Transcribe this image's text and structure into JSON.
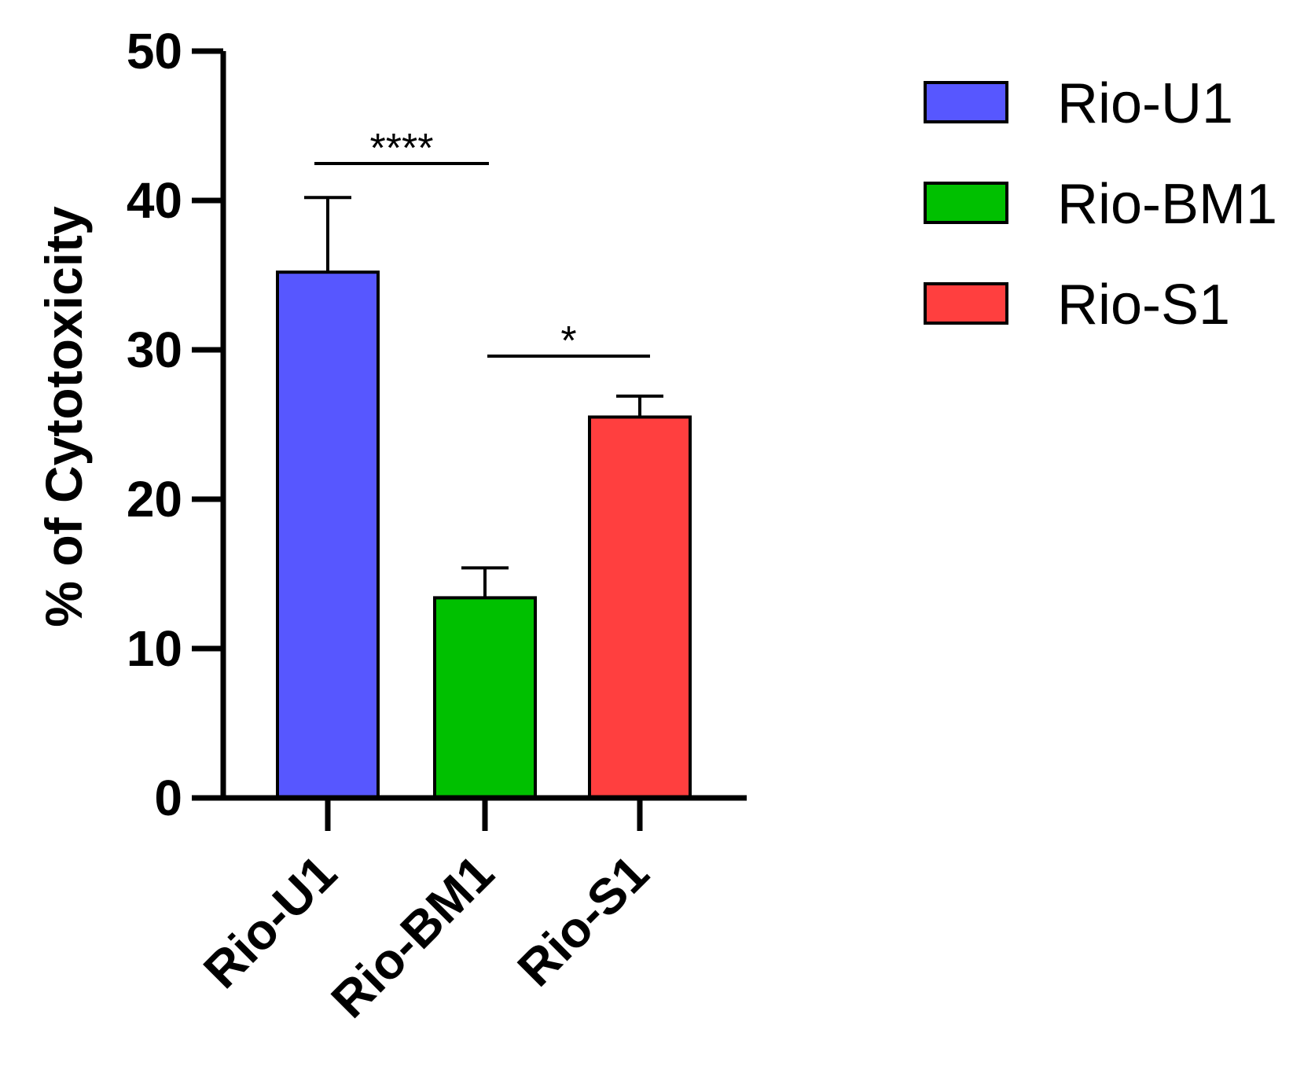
{
  "chart_data": {
    "type": "bar",
    "title": "",
    "xlabel": "",
    "ylabel": "% of Cytotoxicity",
    "ylim": [
      0,
      50
    ],
    "yticks": [
      0,
      10,
      20,
      30,
      40,
      50
    ],
    "categories": [
      "Rio-U1",
      "Rio-BM1",
      "Rio-S1"
    ],
    "values": [
      35.2,
      13.4,
      25.5
    ],
    "errors": [
      5.0,
      2.0,
      1.4
    ],
    "colors": [
      "#5757FF",
      "#00C000",
      "#FF3F3F"
    ],
    "legend": {
      "placement": "top-right",
      "entries": [
        "Rio-U1",
        "Rio-BM1",
        "Rio-S1"
      ]
    },
    "annotations": [
      {
        "from": 0,
        "to": 1,
        "label": "****"
      },
      {
        "from": 1,
        "to": 2,
        "label": "*"
      }
    ],
    "grid": false
  }
}
